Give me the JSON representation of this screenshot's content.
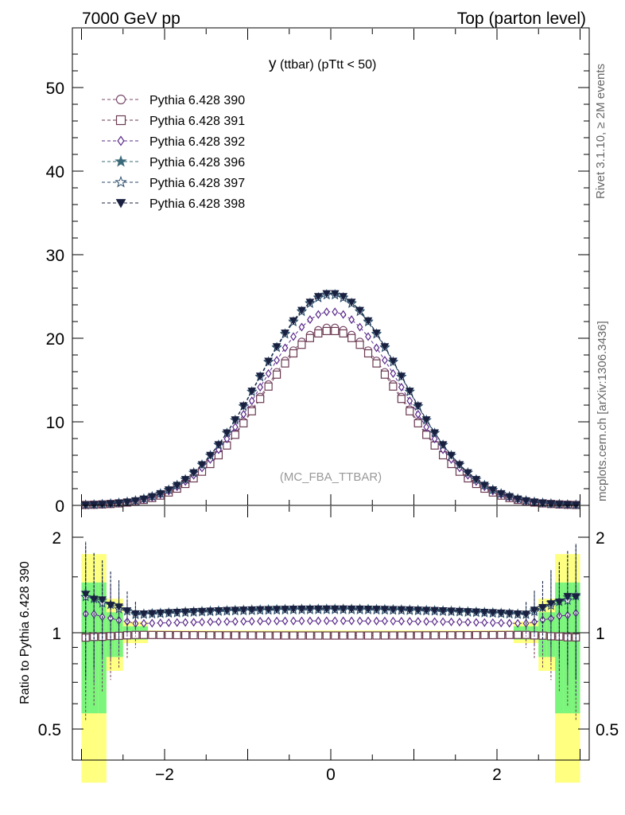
{
  "header": {
    "left": "7000 GeV pp",
    "right": "Top (parton level)"
  },
  "side_labels": {
    "rivet": "Rivet 3.1.10, ≥ 2M events",
    "mcplots": "mcplots.cern.ch [arXiv:1306.3436]"
  },
  "chart_data": {
    "type": "line",
    "title_main": "y",
    "title_rest": "(ttbar)  (pTtt < 50)",
    "watermark": "(MC_FBA_TTBAR)",
    "ratio_ylabel": "Ratio to Pythia 6.428 390",
    "main_yticks": [
      "0",
      "10",
      "20",
      "30",
      "40",
      "50"
    ],
    "ratio_yticks": [
      "0.5",
      "1",
      "2"
    ],
    "xticks": [
      "−2",
      "0",
      "2"
    ],
    "xlim": [
      -3.0,
      3.0
    ],
    "ylim_main": [
      0,
      57
    ],
    "ylim_ratio": [
      0.33,
      2.3
    ],
    "legend_position": "top-left",
    "series": [
      {
        "name": "Pythia 6.428 390",
        "marker": "circle-open",
        "color": "#7a4a6a",
        "peak": 21.3,
        "ratio_mid": 1.0
      },
      {
        "name": "Pythia 6.428 391",
        "marker": "square-open",
        "color": "#6b3a52",
        "peak": 20.9,
        "ratio_mid": 0.98
      },
      {
        "name": "Pythia 6.428 392",
        "marker": "diamond-open",
        "color": "#5a2a8a",
        "peak": 23.2,
        "ratio_mid": 1.09
      },
      {
        "name": "Pythia 6.428 396",
        "marker": "star-filled",
        "color": "#3a6a7a",
        "peak": 25.3,
        "ratio_mid": 1.19
      },
      {
        "name": "Pythia 6.428 397",
        "marker": "star-open",
        "color": "#2a4a6a",
        "peak": 25.2,
        "ratio_mid": 1.18
      },
      {
        "name": "Pythia 6.428 398",
        "marker": "triangle-down",
        "color": "#1a2040",
        "peak": 25.4,
        "ratio_mid": 1.19
      }
    ]
  }
}
